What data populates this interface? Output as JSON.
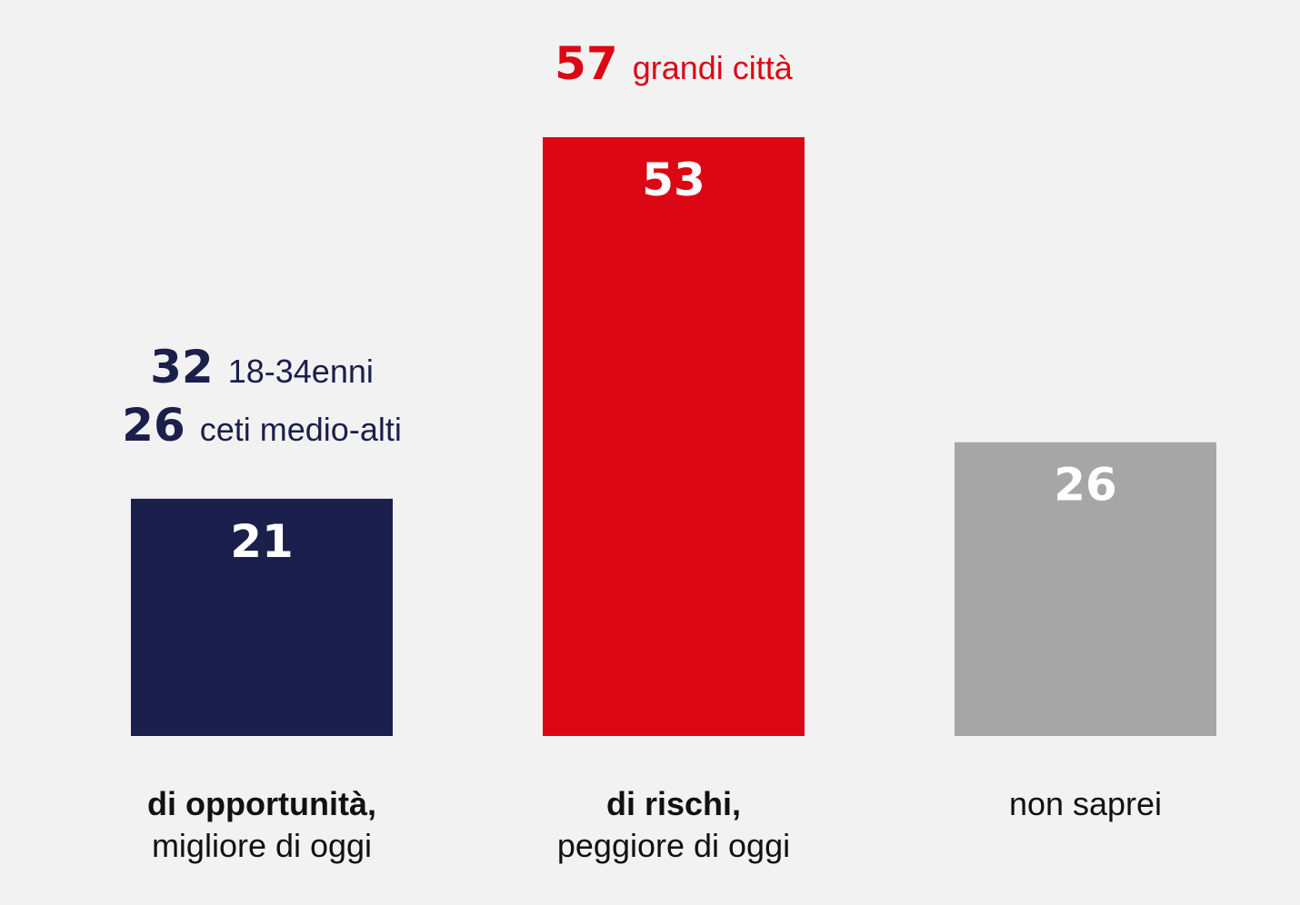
{
  "chart_data": {
    "type": "bar",
    "categories": [
      {
        "bold": "di opportunità,",
        "normal": "migliore di oggi"
      },
      {
        "bold": "di rischi,",
        "normal": "peggiore di oggi"
      },
      {
        "bold": "",
        "normal": "non saprei"
      }
    ],
    "values": [
      21,
      53,
      26
    ],
    "colors": [
      "#1b1f4b",
      "#dc0714",
      "#a6a6a6"
    ],
    "ylim": [
      0,
      53
    ],
    "grid": false,
    "legend": "none",
    "annotations": [
      {
        "bar": 0,
        "color": "#1b1f4b",
        "lines": [
          {
            "value": "32",
            "label": "18-34enni"
          },
          {
            "value": "26",
            "label": "ceti medio-alti"
          }
        ]
      },
      {
        "bar": 1,
        "color": "#dc0714",
        "lines": [
          {
            "value": "57",
            "label": "grandi città"
          }
        ]
      }
    ]
  }
}
